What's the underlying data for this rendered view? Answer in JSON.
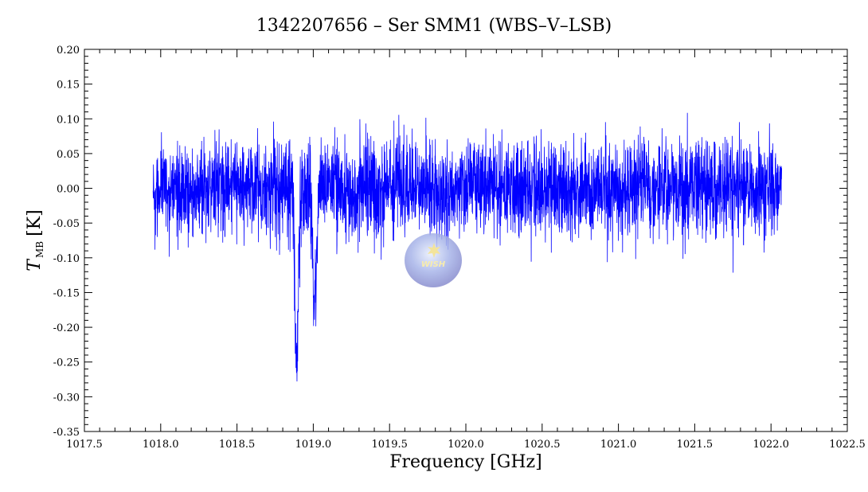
{
  "chart_data": {
    "type": "line",
    "title": "1342207656 – Ser SMM1 (WBS–V–LSB)",
    "xlabel": "Frequency [GHz]",
    "ylabel": {
      "symbol": "T",
      "subscript": "MB",
      "unit": "[K]"
    },
    "xlim": [
      1017.5,
      1022.5
    ],
    "ylim": [
      -0.35,
      0.2
    ],
    "xticks": [
      "1017.5",
      "1018.0",
      "1018.5",
      "1019.0",
      "1019.5",
      "1020.0",
      "1020.5",
      "1021.0",
      "1021.5",
      "1022.0",
      "1022.5"
    ],
    "yticks": [
      "0.20",
      "0.15",
      "0.10",
      "0.05",
      "0.00",
      "-0.05",
      "-0.10",
      "-0.15",
      "-0.20",
      "-0.25",
      "-0.30",
      "-0.35"
    ],
    "grid": false,
    "series": [
      {
        "color": "#0000ff",
        "x_range": [
          1017.95,
          1022.07
        ],
        "baseline": 0.0,
        "noise_rms": 0.035,
        "absorption_features": [
          {
            "x": 1018.89,
            "y": -0.3
          },
          {
            "x": 1019.01,
            "y": -0.22
          }
        ]
      }
    ],
    "logo": {
      "name": "wish-logo",
      "text": "WISH"
    }
  }
}
